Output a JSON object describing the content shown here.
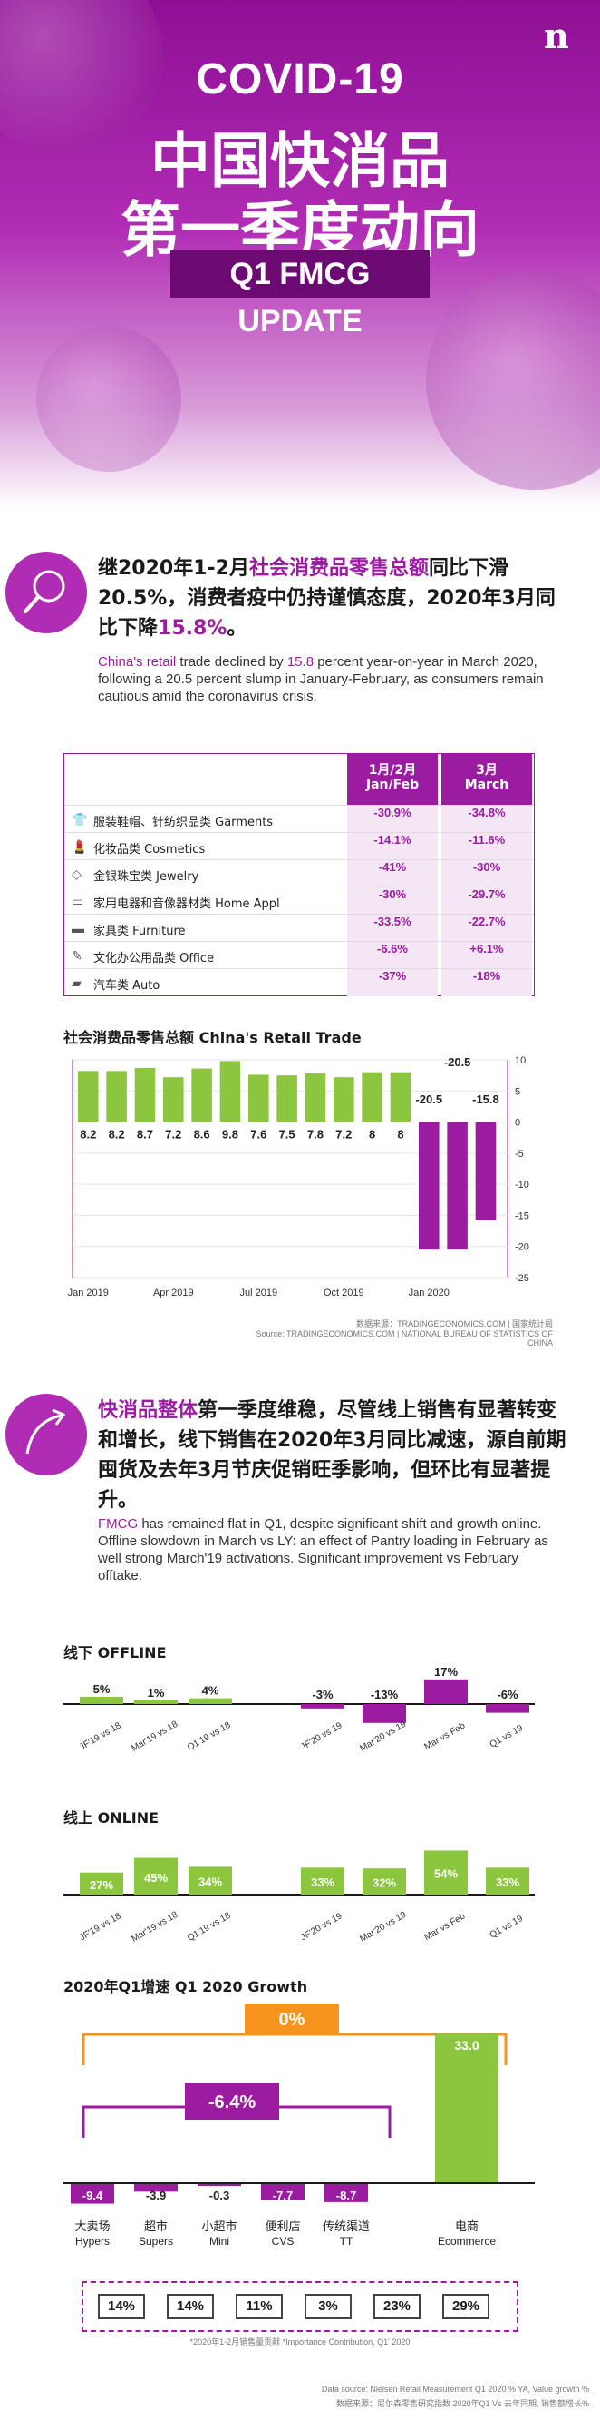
{
  "hero": {
    "logo": "n",
    "title_en": "COVID-19",
    "title_cn_1": "中国快消品",
    "title_cn_2": "第一季度动向",
    "badge": "Q1 FMCG UPDATE"
  },
  "retail": {
    "icon": "magnifier-icon",
    "headline_pre": "继2020年1-2月",
    "headline_hl1": "社会消费品零售总额",
    "headline_mid": "同比下滑20.5%，消费者疫中仍持谨慎态度，2020年3月同比下降",
    "headline_hl2": "15.8%",
    "headline_post": "。",
    "body_hl": "China's retail",
    "body_pre": "trade declined by",
    "body_num": "15.8",
    "body_rest": "percent year-on-year in March 2020, following a 20.5 percent slump in January-February, as consumers remain cautious amid the coronavirus crisis."
  },
  "table": {
    "col1": "1月/2月\nJan/Feb",
    "col2": "3月\nMarch",
    "rows": [
      {
        "icon": "shirt-icon",
        "glyph": "👕",
        "label": "服装鞋帽、针纺织品类 Garments",
        "jan_feb": "-30.9%",
        "march": "-34.8%"
      },
      {
        "icon": "lipstick-icon",
        "glyph": "💄",
        "label": "化妆品类 Cosmetics",
        "jan_feb": "-14.1%",
        "march": "-11.6%"
      },
      {
        "icon": "diamond-icon",
        "glyph": "◇",
        "label": "金银珠宝类 Jewelry",
        "jan_feb": "-41%",
        "march": "-30%"
      },
      {
        "icon": "appliance-icon",
        "glyph": "▭",
        "label": "家用电器和音像器材类 Home Appl",
        "jan_feb": "-30%",
        "march": "-29.7%"
      },
      {
        "icon": "sofa-icon",
        "glyph": "▬",
        "label": "家具类 Furniture",
        "jan_feb": "-33.5%",
        "march": "-22.7%"
      },
      {
        "icon": "pencil-icon",
        "glyph": "✎",
        "label": "文化办公用品类 Office",
        "jan_feb": "-6.6%",
        "march": "+6.1%"
      },
      {
        "icon": "car-icon",
        "glyph": "▰",
        "label": "汽车类 Auto",
        "jan_feb": "-37%",
        "march": "-18%"
      }
    ]
  },
  "retail_chart_title": "社会消费品零售总额 China's Retail Trade",
  "retail_chart_source": "数据来源：TRADINGECONOMICS.COM | 国家统计局\nSource: TRADINGECONOMICS.COM | NATIONAL BUREAU OF STATISTICS OF CHINA",
  "colors": {
    "purple": "#9b1ca0",
    "green": "#8cc63f",
    "orange": "#f7941d",
    "dark_purple": "#6b0a72"
  },
  "fmcg": {
    "icon": "trend-arrow-icon",
    "headline_hl": "快消品整体",
    "headline_rest": "第一季度维稳，尽管线上销售有显著转变和增长，线下销售在2020年3月同比减速，源自前期囤货及去年3月节庆促销旺季影响，但环比有显著提升。",
    "body_hl": "FMCG",
    "body_rest": "has remained flat in Q1, despite significant shift and growth online. Offline slowdown in March vs LY: an effect of Pantry loading in February as well strong March'19 activations. Significant improvement vs February offtake."
  },
  "offline_title": "线下 OFFLINE",
  "online_title": "线上 ONLINE",
  "growth_title": "2020年Q1增速 Q1 2020 Growth",
  "growth_total_label": "0%",
  "growth_offline_label": "-6.4%",
  "channel_note": "*2020年1-2月销售量贡献 *Importance Contribution, Q1' 2020",
  "footer_1": "Data source: Nielsen Retail Measurement Q1 2020 % YA, Value growth %",
  "footer_2": "数据来源：尼尔森零售研究指数 2020年Q1 Vs 去年同期, 销售额增长%",
  "chart_data": [
    {
      "type": "bar",
      "title": "社会消费品零售总额 China's Retail Trade",
      "categories": [
        "Jan 2019",
        "Feb 2019",
        "Mar 2019",
        "Apr 2019",
        "May 2019",
        "Jun 2019",
        "Jul 2019",
        "Aug 2019",
        "Sep 2019",
        "Oct 2019",
        "Nov 2019",
        "Dec 2019",
        "Jan 2020",
        "Feb 2020",
        "Mar 2020"
      ],
      "values": [
        8.2,
        8.2,
        8.7,
        7.2,
        8.6,
        9.8,
        7.6,
        7.5,
        7.8,
        7.2,
        8,
        8,
        -20.5,
        -20.5,
        -15.8
      ],
      "data_labels": [
        "8.2",
        "8.2",
        "8.7",
        "7.2",
        "8.6",
        "9.8",
        "7.6",
        "7.5",
        "7.8",
        "7.2",
        "8",
        "8",
        "-20.5",
        "-20.5",
        "-15.8"
      ],
      "x_tick_labels": [
        "Jan 2019",
        "Apr 2019",
        "Jul 2019",
        "Oct 2019",
        "Jan 2020"
      ],
      "y_ticks": [
        10,
        5,
        0,
        -5,
        -10,
        -15,
        -20,
        -25
      ],
      "ylim": [
        -25,
        10
      ]
    },
    {
      "type": "bar",
      "title": "线下 OFFLINE",
      "categories": [
        "JF'19 vs 18",
        "Mar'19 vs 18",
        "Q1'19 vs 18",
        "JF'20 vs 19",
        "Mar'20 vs 19",
        "Mar vs Feb",
        "Q1 vs 19"
      ],
      "values": [
        5,
        1,
        4,
        -3,
        -13,
        17,
        -6
      ],
      "data_labels": [
        "5%",
        "1%",
        "4%",
        "-3%",
        "-13%",
        "17%",
        "-6%"
      ]
    },
    {
      "type": "bar",
      "title": "线上 ONLINE",
      "categories": [
        "JF'19 vs 18",
        "Mar'19 vs 18",
        "Q1'19 vs 18",
        "JF'20 vs 19",
        "Mar'20 vs 19",
        "Mar vs Feb",
        "Q1 vs 19"
      ],
      "values": [
        27,
        45,
        34,
        33,
        32,
        54,
        33
      ],
      "data_labels": [
        "27%",
        "45%",
        "34%",
        "33%",
        "32%",
        "54%",
        "33%"
      ]
    },
    {
      "type": "bar",
      "title": "2020年Q1增速 Q1 2020 Growth",
      "categories": [
        "大卖场 Hypers",
        "超市 Supers",
        "小超市 Mini",
        "便利店 CVS",
        "传统渠道 TT",
        "电商 Ecommerce"
      ],
      "cn_labels": [
        "大卖场",
        "超市",
        "小超市",
        "便利店",
        "传统渠道",
        "电商"
      ],
      "en_labels": [
        "Hypers",
        "Supers",
        "Mini",
        "CVS",
        "TT",
        "Ecommerce"
      ],
      "values": [
        -9.4,
        -3.9,
        -0.3,
        -7.7,
        -8.7,
        33.0
      ],
      "data_labels": [
        "-9.4",
        "-3.9",
        "-0.3",
        "-7.7",
        "-8.7",
        "33.0"
      ],
      "contribution": [
        "14%",
        "14%",
        "11%",
        "3%",
        "23%",
        "29%"
      ]
    }
  ]
}
